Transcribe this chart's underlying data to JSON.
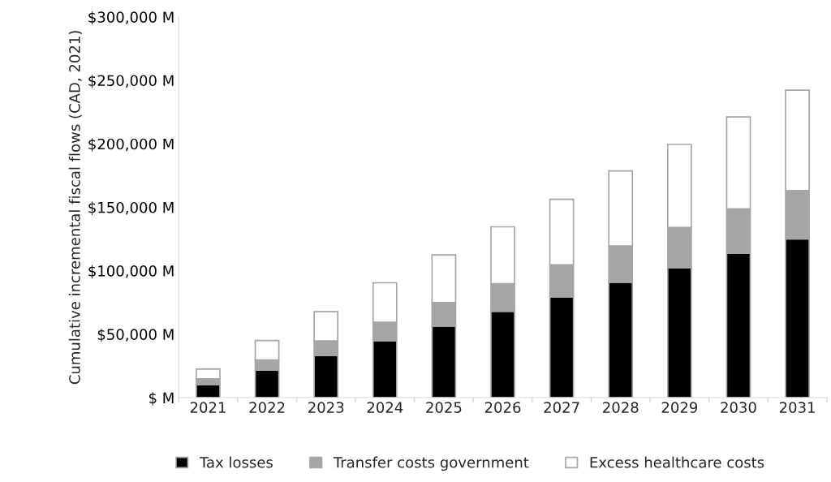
{
  "chart_data": {
    "type": "bar",
    "stacked": true,
    "ylabel": "Cumulative incremental fiscal flows (CAD, 2021)",
    "categories": [
      "2021",
      "2022",
      "2023",
      "2024",
      "2025",
      "2026",
      "2027",
      "2028",
      "2029",
      "2030",
      "2031"
    ],
    "series": [
      {
        "name": "Tax losses",
        "color": "#000000",
        "values": [
          10200,
          21600,
          33100,
          44800,
          56300,
          68000,
          79400,
          90900,
          102400,
          113800,
          125100
        ]
      },
      {
        "name": "Transfer costs government",
        "color": "#a6a6a6",
        "values": [
          4700,
          8100,
          11700,
          14700,
          18600,
          21800,
          25300,
          28600,
          31600,
          34900,
          38100
        ]
      },
      {
        "name": "Excess healthcare costs",
        "color": "#ffffff",
        "values": [
          7600,
          15300,
          22900,
          31000,
          37600,
          44800,
          51600,
          59100,
          65500,
          72500,
          79000
        ]
      }
    ],
    "ylim": [
      0,
      300000
    ],
    "yticks": [
      {
        "value": 0,
        "label": "$ M"
      },
      {
        "value": 50000,
        "label": "$50,000 M"
      },
      {
        "value": 100000,
        "label": "$100,000 M"
      },
      {
        "value": 150000,
        "label": "$150,000 M"
      },
      {
        "value": 200000,
        "label": "$200,000 M"
      },
      {
        "value": 250000,
        "label": "$250,000 M"
      },
      {
        "value": 300000,
        "label": "$300,000 M"
      }
    ],
    "grid": false,
    "legend": "bottom"
  }
}
